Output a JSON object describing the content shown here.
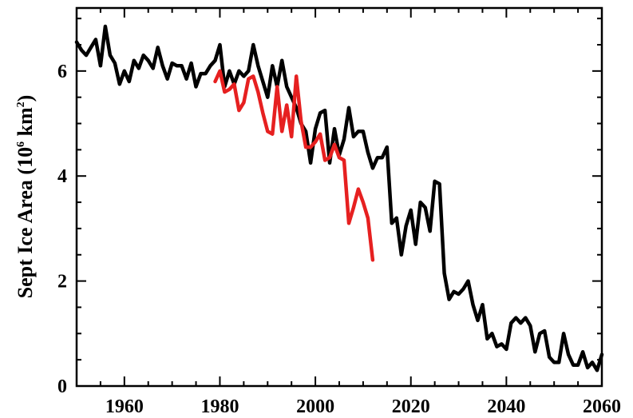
{
  "chart_data": {
    "type": "line",
    "title": "",
    "xlabel": "",
    "ylabel": {
      "prefix": "Sept Ice Area (10",
      "exponent": "6",
      "middle": " km",
      "square": "2",
      "suffix": ")"
    },
    "xlim": [
      1950,
      2060
    ],
    "ylim": [
      0,
      7.2
    ],
    "x_ticks": [
      1960,
      1980,
      2000,
      2020,
      2040,
      2060
    ],
    "x_tick_labels": [
      "1960",
      "1980",
      "2000",
      "2020",
      "2040",
      "2060"
    ],
    "y_ticks": [
      0,
      2,
      4,
      6
    ],
    "y_tick_labels": [
      "0",
      "2",
      "4",
      "6"
    ],
    "grid": false,
    "legend": "none",
    "series": [
      {
        "color": "#000000",
        "x": [
          1950,
          1951,
          1952,
          1953,
          1954,
          1955,
          1956,
          1957,
          1958,
          1959,
          1960,
          1961,
          1962,
          1963,
          1964,
          1965,
          1966,
          1967,
          1968,
          1969,
          1970,
          1971,
          1972,
          1973,
          1974,
          1975,
          1976,
          1977,
          1978,
          1979,
          1980,
          1981,
          1982,
          1983,
          1984,
          1985,
          1986,
          1987,
          1988,
          1989,
          1990,
          1991,
          1992,
          1993,
          1994,
          1995,
          1996,
          1997,
          1998,
          1999,
          2000,
          2001,
          2002,
          2003,
          2004,
          2005,
          2006,
          2007,
          2008,
          2009,
          2010,
          2011,
          2012,
          2013,
          2014,
          2015,
          2016,
          2017,
          2018,
          2019,
          2020,
          2021,
          2022,
          2023,
          2024,
          2025,
          2026,
          2027,
          2028,
          2029,
          2030,
          2031,
          2032,
          2033,
          2034,
          2035,
          2036,
          2037,
          2038,
          2039,
          2040,
          2041,
          2042,
          2043,
          2044,
          2045,
          2046,
          2047,
          2048,
          2049,
          2050,
          2051,
          2052,
          2053,
          2054,
          2055,
          2056,
          2057,
          2058,
          2059,
          2060
        ],
        "y": [
          6.55,
          6.4,
          6.3,
          6.45,
          6.6,
          6.1,
          6.85,
          6.3,
          6.15,
          5.75,
          6.0,
          5.8,
          6.2,
          6.05,
          6.3,
          6.2,
          6.05,
          6.45,
          6.1,
          5.85,
          6.15,
          6.1,
          6.1,
          5.85,
          6.15,
          5.7,
          5.95,
          5.95,
          6.1,
          6.2,
          6.5,
          5.7,
          6.0,
          5.75,
          6.0,
          5.9,
          6.0,
          6.5,
          6.1,
          5.8,
          5.5,
          6.1,
          5.7,
          6.2,
          5.7,
          5.5,
          5.3,
          5.0,
          4.85,
          4.25,
          4.9,
          5.2,
          5.25,
          4.25,
          4.9,
          4.4,
          4.7,
          5.3,
          4.75,
          4.85,
          4.85,
          4.45,
          4.15,
          4.35,
          4.35,
          4.55,
          3.1,
          3.2,
          2.5,
          3.05,
          3.35,
          2.7,
          3.5,
          3.4,
          2.95,
          3.9,
          3.85,
          2.15,
          1.65,
          1.8,
          1.75,
          1.85,
          2.0,
          1.55,
          1.25,
          1.55,
          0.9,
          1.0,
          0.75,
          0.8,
          0.7,
          1.2,
          1.3,
          1.2,
          1.3,
          1.15,
          0.65,
          1.0,
          1.05,
          0.55,
          0.45,
          0.45,
          1.0,
          0.6,
          0.4,
          0.4,
          0.65,
          0.35,
          0.45,
          0.3,
          0.6
        ]
      },
      {
        "color": "#e62020",
        "x": [
          1979,
          1980,
          1981,
          1982,
          1983,
          1984,
          1985,
          1986,
          1987,
          1988,
          1989,
          1990,
          1991,
          1992,
          1993,
          1994,
          1995,
          1996,
          1997,
          1998,
          1999,
          2000,
          2001,
          2002,
          2003,
          2004,
          2005,
          2006,
          2007,
          2008,
          2009,
          2010,
          2011,
          2012
        ],
        "y": [
          5.8,
          6.0,
          5.6,
          5.65,
          5.75,
          5.25,
          5.4,
          5.85,
          5.9,
          5.6,
          5.2,
          4.85,
          4.8,
          5.7,
          4.85,
          5.35,
          4.75,
          5.9,
          5.05,
          4.55,
          4.55,
          4.65,
          4.8,
          4.3,
          4.35,
          4.6,
          4.35,
          4.3,
          3.1,
          3.4,
          3.75,
          3.5,
          3.2,
          2.4
        ]
      }
    ]
  }
}
